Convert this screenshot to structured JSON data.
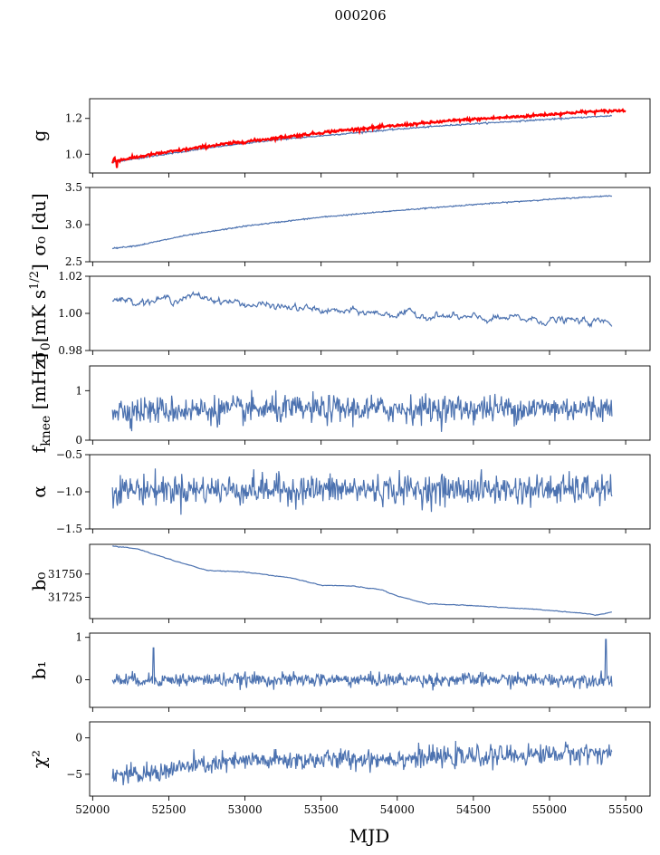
{
  "chart_data": {
    "type": "line",
    "title": "000206",
    "xlabel": "MJD",
    "x_range": [
      51980,
      55660
    ],
    "x_ticks": [
      52000,
      52500,
      53000,
      53500,
      54000,
      54500,
      55000,
      55500
    ],
    "x_tick_labels": [
      "52000",
      "52500",
      "53000",
      "53500",
      "54000",
      "54500",
      "55000",
      "55500"
    ],
    "x_start": 52130,
    "x_end": 55410,
    "panels": [
      {
        "id": "gain",
        "ylabel": "g",
        "ylim": [
          0.895,
          1.31
        ],
        "yticks": [
          1.0,
          1.2
        ],
        "ytick_labels": [
          "1.0",
          "1.2"
        ],
        "series": [
          {
            "name": "g (blue)",
            "color": "#4c72b0",
            "x": [
              52130,
              52400,
              52800,
              53200,
              53600,
              54000,
              54400,
              54800,
              55200,
              55410
            ],
            "y": [
              0.955,
              0.99,
              1.04,
              1.08,
              1.11,
              1.14,
              1.165,
              1.185,
              1.205,
              1.215
            ],
            "noise": 0.002
          },
          {
            "name": "g (red)",
            "color": "#ff0000",
            "x": [
              52130,
              52400,
              52800,
              53200,
              53600,
              54000,
              54400,
              54800,
              55200,
              55500
            ],
            "y": [
              0.96,
              1.0,
              1.05,
              1.09,
              1.13,
              1.16,
              1.19,
              1.21,
              1.235,
              1.245
            ],
            "noise": 0.004
          }
        ]
      },
      {
        "id": "sigma0_du",
        "ylabel": "σ₀ [du]",
        "ylim": [
          2.5,
          3.5
        ],
        "yticks": [
          2.5,
          3.0,
          3.5
        ],
        "ytick_labels": [
          "2.5",
          "3.0",
          "3.5"
        ],
        "series": [
          {
            "name": "sigma0",
            "color": "#4c72b0",
            "x": [
              52130,
              52300,
              52600,
              53000,
              53500,
              54000,
              54500,
              55000,
              55410
            ],
            "y": [
              2.68,
              2.72,
              2.85,
              2.98,
              3.1,
              3.19,
              3.27,
              3.34,
              3.39
            ],
            "noise": 0.004
          }
        ]
      },
      {
        "id": "sigma0_mK",
        "ylabel": "σ₀[mK s^1/2]",
        "ylim": [
          0.98,
          1.02
        ],
        "yticks": [
          0.98,
          1.0,
          1.02
        ],
        "ytick_labels": [
          "0.98",
          "1.00",
          "1.02"
        ],
        "series": [
          {
            "name": "sigma0 mK",
            "color": "#4c72b0",
            "x": [
              52130,
              52400,
              52700,
              53000,
              53300,
              53600,
              53900,
              54200,
              54500,
              54800,
              55100,
              55410
            ],
            "y": [
              1.007,
              1.007,
              1.009,
              1.005,
              1.003,
              1.001,
              1.0,
              0.999,
              0.997,
              0.997,
              0.996,
              0.995
            ],
            "noise": 0.0014
          }
        ]
      },
      {
        "id": "fknee",
        "ylabel": "f_knee [mHz]",
        "ylim": [
          0,
          1.5
        ],
        "yticks": [
          0,
          1
        ],
        "ytick_labels": [
          "0",
          "1"
        ],
        "series": [
          {
            "name": "fknee",
            "color": "#4c72b0",
            "x": [
              52130,
              55410
            ],
            "y": [
              0.6,
              0.65
            ],
            "noise": 0.14
          }
        ]
      },
      {
        "id": "alpha",
        "ylabel": "α",
        "ylim": [
          -1.5,
          -0.5
        ],
        "yticks": [
          -1.5,
          -1.0,
          -0.5
        ],
        "ytick_labels": [
          "−1.5",
          "−1.0",
          "−0.5"
        ],
        "series": [
          {
            "name": "alpha",
            "color": "#4c72b0",
            "x": [
              52130,
              55410
            ],
            "y": [
              -0.97,
              -0.97
            ],
            "noise": 0.1
          }
        ]
      },
      {
        "id": "b0",
        "ylabel": "b₀",
        "ylim": [
          31702,
          31782
        ],
        "yticks": [
          31725,
          31750
        ],
        "ytick_labels": [
          "31725",
          "31750"
        ],
        "series": [
          {
            "name": "b0",
            "color": "#4c72b0",
            "x": [
              52130,
              52300,
              52500,
              52750,
              53000,
              53300,
              53500,
              53700,
              53900,
              54000,
              54200,
              54500,
              54700,
              55000,
              55200,
              55300,
              55410
            ],
            "y": [
              31780,
              31777,
              31766,
              31754,
              31752,
              31746,
              31738,
              31737,
              31733,
              31726,
              31718,
              31716,
              31714,
              31711,
              31708,
              31706,
              31709
            ],
            "noise": 0.5
          }
        ]
      },
      {
        "id": "b1",
        "ylabel": "b₁",
        "ylim": [
          -0.65,
          1.1
        ],
        "yticks": [
          0,
          1
        ],
        "ytick_labels": [
          "0",
          "1"
        ],
        "series": [
          {
            "name": "b1",
            "color": "#4c72b0",
            "x": [
              52130,
              55410
            ],
            "y": [
              0.0,
              0.0
            ],
            "noise": 0.08
          }
        ]
      },
      {
        "id": "chi2",
        "ylabel": "χ²",
        "ylim": [
          -8,
          2.2
        ],
        "yticks": [
          -5,
          0
        ],
        "ytick_labels": [
          "−5",
          "0"
        ],
        "series": [
          {
            "name": "chi2",
            "color": "#4c72b0",
            "x": [
              52130,
              52300,
              52600,
              53000,
              53500,
              54000,
              54500,
              55000,
              55410
            ],
            "y": [
              -5.0,
              -5.2,
              -4.0,
              -3.2,
              -3.0,
              -2.8,
              -2.6,
              -2.2,
              -2.0
            ],
            "noise": 0.7
          }
        ]
      }
    ]
  }
}
